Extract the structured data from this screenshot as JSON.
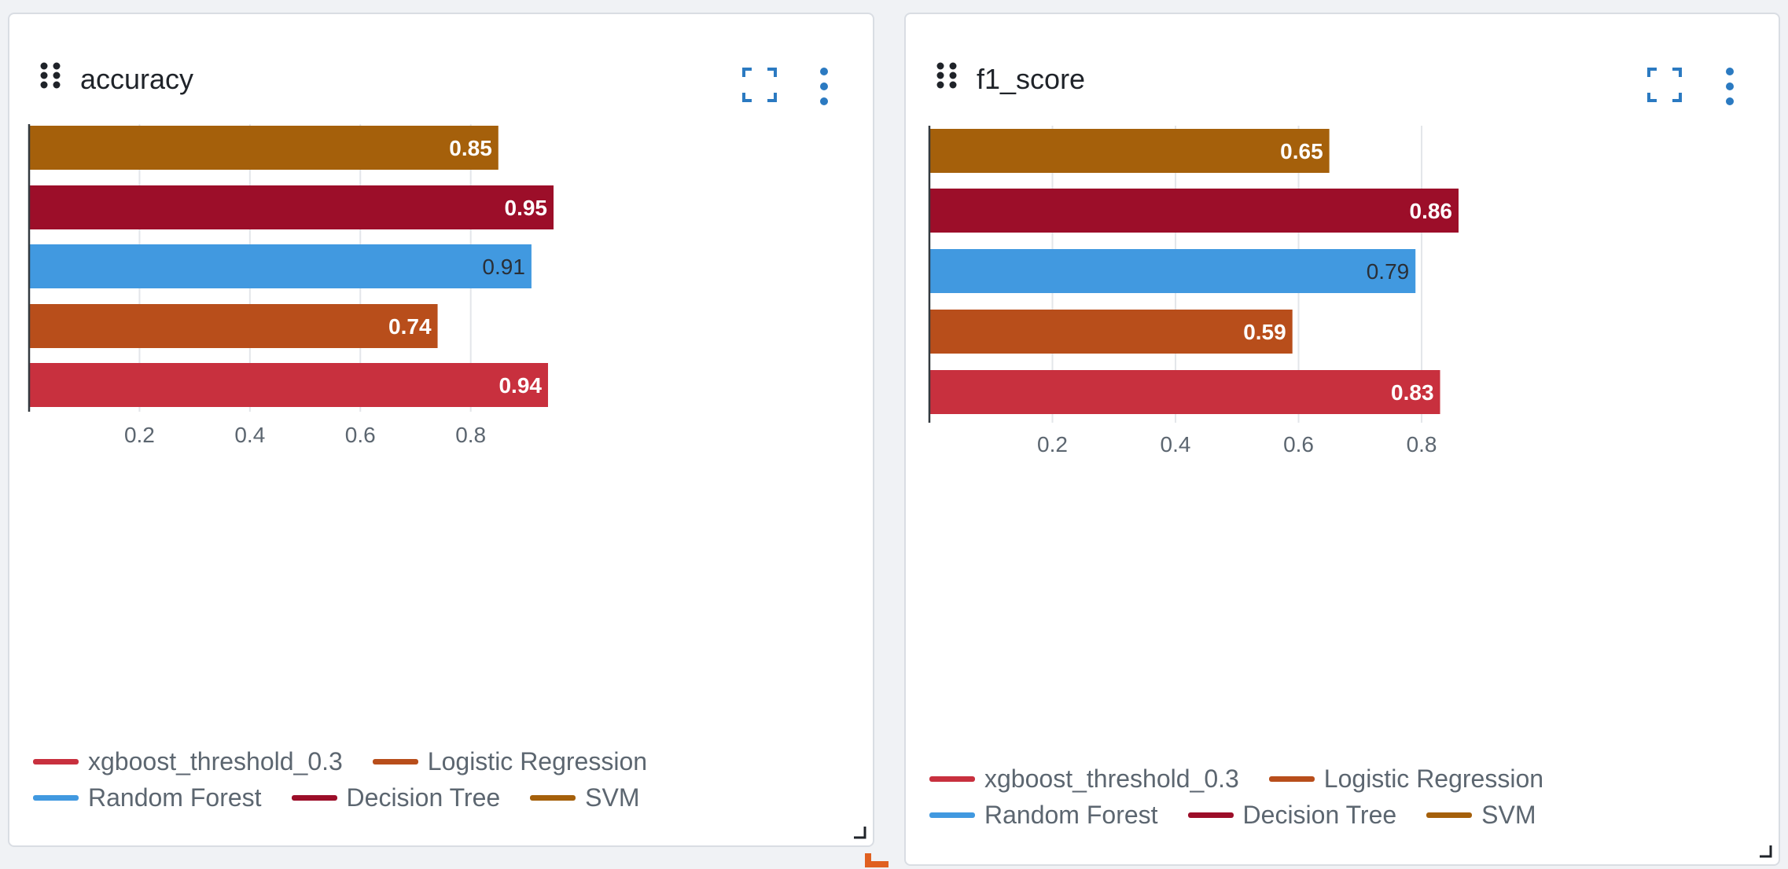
{
  "colors": {
    "xgboost_threshold_0.3": "#c8303e",
    "Logistic Regression": "#b84e1b",
    "Random Forest": "#4199e0",
    "Decision Tree": "#9c0e29",
    "SVM": "#a5600b",
    "icon": "#2b7ac1",
    "drop_indicator": "#e06020"
  },
  "panels": [
    {
      "title": "accuracy",
      "chart_data": {
        "type": "bar",
        "orientation": "horizontal",
        "title": "accuracy",
        "series": [
          {
            "name": "SVM",
            "value": 0.85,
            "label": "0.85"
          },
          {
            "name": "Decision Tree",
            "value": 0.95,
            "label": "0.95"
          },
          {
            "name": "Random Forest",
            "value": 0.91,
            "label": "0.91"
          },
          {
            "name": "Logistic Regression",
            "value": 0.74,
            "label": "0.74"
          },
          {
            "name": "xgboost_threshold_0.3",
            "value": 0.94,
            "label": "0.94"
          }
        ],
        "xlim": [
          0,
          0.95
        ],
        "ticks": [
          0.2,
          0.4,
          0.6,
          0.8
        ],
        "tick_labels": [
          "0.2",
          "0.4",
          "0.6",
          "0.8"
        ],
        "grid": true,
        "legend_position": "bottom-left"
      },
      "legend_rows": [
        [
          "xgboost_threshold_0.3",
          "Logistic Regression"
        ],
        [
          "Random Forest",
          "Decision Tree",
          "SVM"
        ]
      ]
    },
    {
      "title": "f1_score",
      "chart_data": {
        "type": "bar",
        "orientation": "horizontal",
        "title": "f1_score",
        "series": [
          {
            "name": "SVM",
            "value": 0.65,
            "label": "0.65"
          },
          {
            "name": "Decision Tree",
            "value": 0.86,
            "label": "0.86"
          },
          {
            "name": "Random Forest",
            "value": 0.79,
            "label": "0.79"
          },
          {
            "name": "Logistic Regression",
            "value": 0.59,
            "label": "0.59"
          },
          {
            "name": "xgboost_threshold_0.3",
            "value": 0.83,
            "label": "0.83"
          }
        ],
        "xlim": [
          0,
          0.86
        ],
        "ticks": [
          0.2,
          0.4,
          0.6,
          0.8
        ],
        "tick_labels": [
          "0.2",
          "0.4",
          "0.6",
          "0.8"
        ],
        "grid": true,
        "legend_position": "bottom-left"
      },
      "legend_rows": [
        [
          "xgboost_threshold_0.3",
          "Logistic Regression"
        ],
        [
          "Random Forest",
          "Decision Tree",
          "SVM"
        ]
      ]
    }
  ]
}
